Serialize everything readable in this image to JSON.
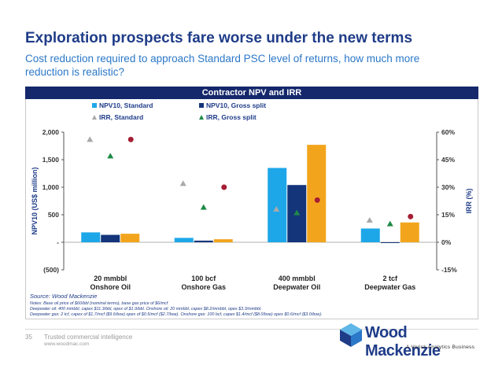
{
  "slide": {
    "title": "Exploration prospects fare worse under the new terms",
    "subtitle": "Cost reduction required to approach Standard PSC level of returns, how much more reduction is realistic?",
    "chart_header": "Contractor NPV and IRR",
    "source": "Source: Wood Mackenzie",
    "notes": [
      "Notes: Base oil price of $60/bbl (nominal terms), base gas price of $6/mcf",
      "Deepwater oil: 400 mmbbl, capex $11.3/bbl, opex of $1.9/bbl. Onshore oil: 20 mmbbl, capex  $8.2/mmbbl, opex $3.3/mmbbl.",
      "Deepwater gas: 2 tcf, capex of $1.7/mcf ($9.6/boe) opex of $0.5/mcf ($2.7/boe). Onshore gas: 100 bcf, capex $1.4/mcf ($8.0/boe) opex $0.6/mcf ($3.0/boe)."
    ],
    "page_number": "35",
    "tagline": "Trusted commercial intelligence",
    "website": "www.woodmac.com",
    "logo_text": "Wood Mackenzie",
    "logo_subtitle": "A Verisk Analytics Business"
  },
  "colors": {
    "npv_standard": "#1ea7e8",
    "npv_gross_split": "#14357a",
    "npv_third": "#f2a51c",
    "irr_standard": "#a9a9a9",
    "irr_gross_split": "#1e8a46",
    "irr_third": "#a61e34",
    "header": "#14286b",
    "title": "#1f3c88",
    "subtitle": "#2b78c8"
  },
  "chart_data": {
    "type": "bar",
    "categories": [
      [
        "20 mmbbl",
        "Onshore Oil"
      ],
      [
        "100 bcf",
        "Onshore Gas"
      ],
      [
        "400 mmbbl",
        "Deepwater Oil"
      ],
      [
        "2 tcf",
        "Deepwater Gas"
      ]
    ],
    "ylabel": "NPV10 (US$ million)",
    "y2label": "IRR (%)",
    "ylim": [
      -500,
      2000
    ],
    "yticks": [
      "2,000",
      "1,500",
      "1,000",
      "500",
      "-",
      "(500)"
    ],
    "y2lim": [
      -15,
      60
    ],
    "y2ticks": [
      "60%",
      "45%",
      "30%",
      "15%",
      "0%",
      "-15%"
    ],
    "legend": [
      {
        "label": "NPV10, Standard",
        "kind": "square",
        "color_key": "npv_standard"
      },
      {
        "label": "NPV10, Gross split",
        "kind": "square",
        "color_key": "npv_gross_split"
      },
      {
        "label": "IRR, Standard",
        "kind": "triangle",
        "color_key": "irr_standard"
      },
      {
        "label": "IRR, Gross split",
        "kind": "triangle",
        "color_key": "irr_gross_split"
      }
    ],
    "bar_series": [
      {
        "name": "NPV10, Standard",
        "color_key": "npv_standard",
        "values": [
          180,
          80,
          1350,
          250
        ]
      },
      {
        "name": "NPV10, Gross split",
        "color_key": "npv_gross_split",
        "values": [
          135,
          30,
          1040,
          -10
        ]
      },
      {
        "color_key": "npv_third",
        "values": [
          155,
          55,
          1770,
          360
        ]
      }
    ],
    "marker_series": [
      {
        "name": "IRR, Standard",
        "shape": "triangle",
        "color_key": "irr_standard",
        "values": [
          56,
          32,
          18,
          12
        ]
      },
      {
        "name": "IRR, Gross split",
        "shape": "triangle",
        "color_key": "irr_gross_split",
        "values": [
          47,
          19,
          16,
          10
        ]
      },
      {
        "shape": "circle",
        "color_key": "irr_third",
        "values": [
          56,
          30,
          23,
          14
        ]
      }
    ]
  }
}
